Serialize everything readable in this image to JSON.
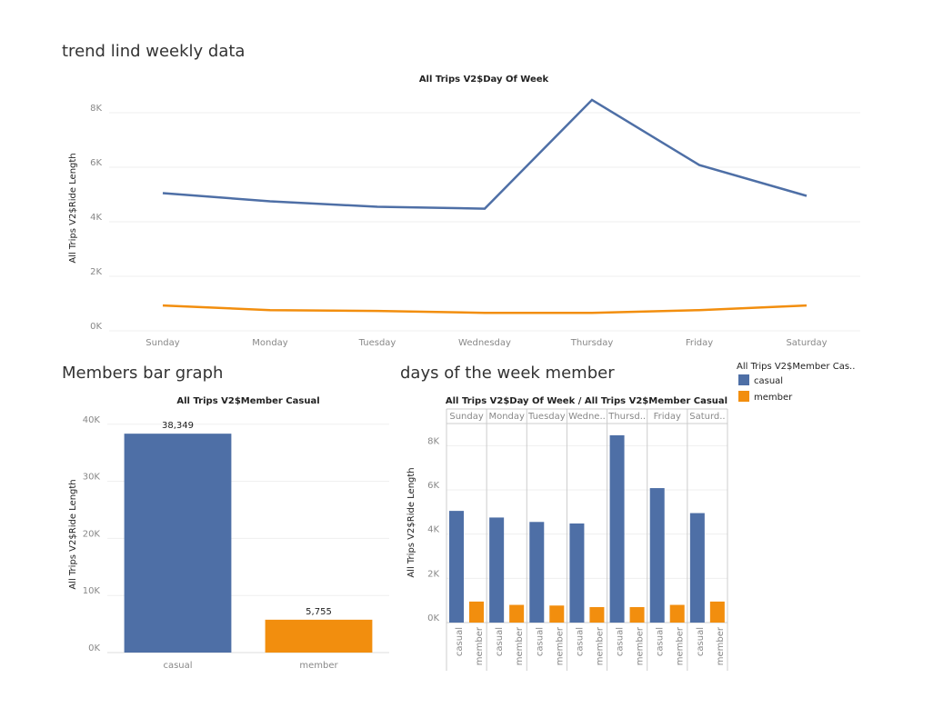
{
  "chart_data": [
    {
      "type": "line",
      "title": "trend lind weekly data",
      "subtitle": "All Trips V2$Day Of Week",
      "y_label": "All Trips V2$Ride Length",
      "categories": [
        "Sunday",
        "Monday",
        "Tuesday",
        "Wednesday",
        "Thursday",
        "Friday",
        "Saturday"
      ],
      "series": [
        {
          "name": "casual",
          "color": "#4e6fa6",
          "values": [
            5050,
            4750,
            4550,
            4480,
            8470,
            6080,
            4950
          ]
        },
        {
          "name": "member",
          "color": "#f28e0e",
          "values": [
            930,
            760,
            730,
            660,
            660,
            760,
            930
          ]
        }
      ],
      "ylim": [
        0,
        8800
      ],
      "yticks": [
        {
          "value": 0,
          "label": "0K"
        },
        {
          "value": 2000,
          "label": "2K"
        },
        {
          "value": 4000,
          "label": "4K"
        },
        {
          "value": 6000,
          "label": "6K"
        },
        {
          "value": 8000,
          "label": "8K"
        }
      ],
      "grid": true
    },
    {
      "type": "bar",
      "title": "Members bar graph",
      "subtitle": "All Trips V2$Member Casual",
      "y_label": "All Trips V2$Ride Length",
      "categories": [
        "casual",
        "member"
      ],
      "values": [
        38349,
        5755
      ],
      "value_labels": [
        "38,349",
        "5,755"
      ],
      "colors": [
        "#4e6fa6",
        "#f28e0e"
      ],
      "ylim": [
        0,
        41400
      ],
      "yticks": [
        {
          "value": 0,
          "label": "0K"
        },
        {
          "value": 10000,
          "label": "10K"
        },
        {
          "value": 20000,
          "label": "20K"
        },
        {
          "value": 30000,
          "label": "30K"
        },
        {
          "value": 40000,
          "label": "40K"
        }
      ],
      "grid": true
    },
    {
      "type": "grouped_bar",
      "title": "days of the week member",
      "subtitle": "All Trips V2$Day Of Week / All Trips V2$Member Casual",
      "y_label": "All Trips V2$Ride Length",
      "legend_title": "All Trips V2$Member Cas..",
      "categories": [
        "Sunday",
        "Monday",
        "Tuesday",
        "Wedne..",
        "Thursd..",
        "Friday",
        "Saturd.."
      ],
      "series": [
        {
          "name": "casual",
          "color": "#4e6fa6",
          "values": [
            5050,
            4750,
            4550,
            4480,
            8470,
            6080,
            4950
          ]
        },
        {
          "name": "member",
          "color": "#f28e0e",
          "values": [
            950,
            800,
            770,
            700,
            700,
            800,
            950
          ]
        }
      ],
      "ylim": [
        0,
        9000
      ],
      "yticks": [
        {
          "value": 0,
          "label": "0K"
        },
        {
          "value": 2000,
          "label": "2K"
        },
        {
          "value": 4000,
          "label": "4K"
        },
        {
          "value": 6000,
          "label": "6K"
        },
        {
          "value": 8000,
          "label": "8K"
        }
      ],
      "grid": true
    }
  ]
}
